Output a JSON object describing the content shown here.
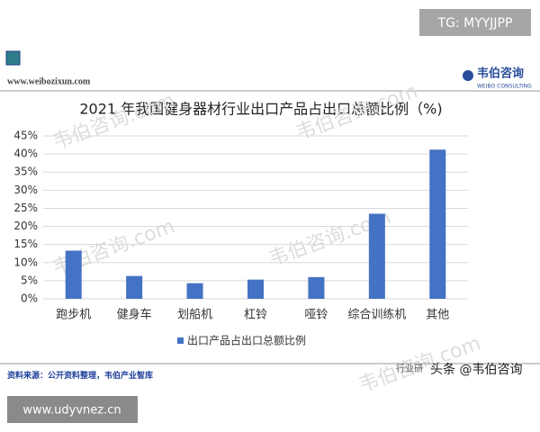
{
  "header": {
    "tag": "TG: MYYJJPP",
    "url": "www.weibozixun.com",
    "logo_cn": "韦伯咨询",
    "logo_en": "WEIBO CONSULTING"
  },
  "watermark": "韦伯咨询.com",
  "chart_data": {
    "type": "bar",
    "title": "2021 年我国健身器材行业出口产品占出口总额比例（%)",
    "categories": [
      "跑步机",
      "健身车",
      "划船机",
      "杠铃",
      "哑铃",
      "综合训练机",
      "其他"
    ],
    "series": [
      {
        "name": "出口产品占出口总额比例",
        "color": "#4472c4",
        "values": [
          13.3,
          6.3,
          4.3,
          5.3,
          6.0,
          23.5,
          41.2
        ]
      }
    ],
    "ylim": [
      0,
      45
    ],
    "yticks": [
      {
        "value": 0,
        "label": "0%"
      },
      {
        "value": 5,
        "label": "5%"
      },
      {
        "value": 10,
        "label": "10%"
      },
      {
        "value": 15,
        "label": "15%"
      },
      {
        "value": 20,
        "label": "20%"
      },
      {
        "value": 25,
        "label": "25%"
      },
      {
        "value": 30,
        "label": "30%"
      },
      {
        "value": 35,
        "label": "35%"
      },
      {
        "value": 40,
        "label": "40%"
      },
      {
        "value": 45,
        "label": "45%"
      }
    ],
    "grid": true,
    "legend": "bottom"
  },
  "footer": {
    "source": "资料来源：公开资料整理，韦伯产业智库",
    "right_text": "行业研",
    "toutiao": "头条 @韦伯咨询",
    "site": "www.udyvnez.cn"
  }
}
